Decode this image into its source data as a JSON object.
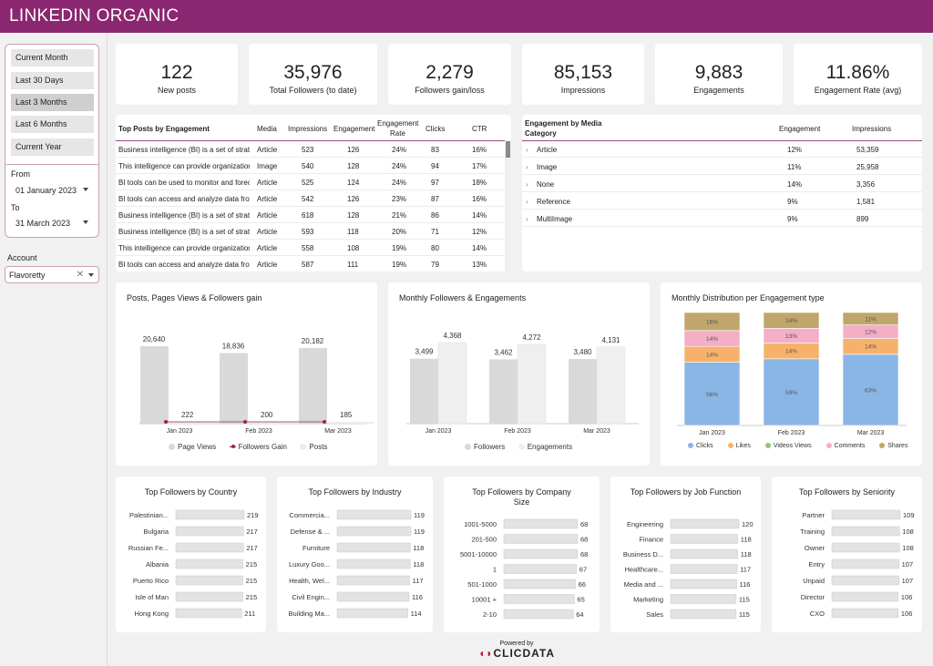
{
  "header": {
    "title": "LINKEDIN ORGANIC"
  },
  "sidebar": {
    "periods": [
      {
        "label": "Current Month",
        "active": false
      },
      {
        "label": "Last 30 Days",
        "active": false
      },
      {
        "label": "Last 3 Months",
        "active": true
      },
      {
        "label": "Last 6 Months",
        "active": false
      },
      {
        "label": "Current Year",
        "active": false
      }
    ],
    "from_label": "From",
    "from_value": "01 January 2023",
    "to_label": "To",
    "to_value": "31 March 2023",
    "account_label": "Account",
    "account_value": "Flavoretty",
    "account_clear": "✕"
  },
  "kpis": [
    {
      "value": "122",
      "caption": "New posts"
    },
    {
      "value": "35,976",
      "caption": "Total Followers (to date)"
    },
    {
      "value": "2,279",
      "caption": "Followers gain/loss"
    },
    {
      "value": "85,153",
      "caption": "Impressions"
    },
    {
      "value": "9,883",
      "caption": "Engagements"
    },
    {
      "value": "11.86%",
      "caption": "Engagement Rate (avg)"
    }
  ],
  "top_posts": {
    "headers": {
      "title": "Top Posts by Engagement",
      "media": "Media",
      "impressions": "Impressions",
      "engagement": "Engagement",
      "rate_1": "Engagement",
      "rate_2": "Rate",
      "clicks": "Clicks",
      "ctr": "CTR"
    },
    "rows": [
      {
        "post": "Business intelligence (BI) is a set of strategies",
        "media": "Article",
        "impressions": "523",
        "engagement": "126",
        "rate": "24%",
        "clicks": "83",
        "ctr": "16%"
      },
      {
        "post": "This intelligence can provide organizations",
        "media": "Image",
        "impressions": "540",
        "engagement": "128",
        "rate": "24%",
        "clicks": "94",
        "ctr": "17%"
      },
      {
        "post": "BI tools can be used to monitor and forecast",
        "media": "Article",
        "impressions": "525",
        "engagement": "124",
        "rate": "24%",
        "clicks": "97",
        "ctr": "18%"
      },
      {
        "post": "BI tools can access and analyze data from",
        "media": "Article",
        "impressions": "542",
        "engagement": "126",
        "rate": "23%",
        "clicks": "87",
        "ctr": "16%"
      },
      {
        "post": "Business intelligence (BI) is a set of strategies",
        "media": "Article",
        "impressions": "618",
        "engagement": "128",
        "rate": "21%",
        "clicks": "86",
        "ctr": "14%"
      },
      {
        "post": "Business intelligence (BI) is a set of strategies",
        "media": "Article",
        "impressions": "593",
        "engagement": "118",
        "rate": "20%",
        "clicks": "71",
        "ctr": "12%"
      },
      {
        "post": "This intelligence can provide organizations",
        "media": "Article",
        "impressions": "558",
        "engagement": "108",
        "rate": "19%",
        "clicks": "80",
        "ctr": "14%"
      },
      {
        "post": "BI tools can access and analyze data from",
        "media": "Article",
        "impressions": "587",
        "engagement": "111",
        "rate": "19%",
        "clicks": "79",
        "ctr": "13%"
      }
    ]
  },
  "media_category": {
    "headers": {
      "title_1": "Engagement by Media",
      "title_2": "Category",
      "engagement": "Engagement",
      "impressions": "Impressions"
    },
    "rows": [
      {
        "name": "Article",
        "engagement": "12%",
        "impressions": "53,359"
      },
      {
        "name": "Image",
        "engagement": "11%",
        "impressions": "25,958"
      },
      {
        "name": "None",
        "engagement": "14%",
        "impressions": "3,356"
      },
      {
        "name": "Reference",
        "engagement": "9%",
        "impressions": "1,581"
      },
      {
        "name": "MultiImage",
        "engagement": "9%",
        "impressions": "899"
      }
    ]
  },
  "chart_data": [
    {
      "type": "bar",
      "title": "Posts, Pages Views & Followers gain",
      "categories": [
        "Jan 2023",
        "Feb 2023",
        "Mar 2023"
      ],
      "series": [
        {
          "name": "Page Views",
          "values": [
            20640,
            18836,
            20182
          ],
          "color": "#d9d9d9"
        },
        {
          "name": "Followers Gain",
          "values": [
            222,
            200,
            185
          ],
          "color": "#a01f4f"
        },
        {
          "name": "Posts",
          "values": [
            0,
            0,
            0
          ],
          "color": "#ececec"
        }
      ],
      "data_labels": [
        [
          "20,640",
          "222"
        ],
        [
          "18,836",
          "200"
        ],
        [
          "20,182",
          "185"
        ]
      ]
    },
    {
      "type": "bar",
      "title": "Monthly Followers & Engagements",
      "categories": [
        "Jan 2023",
        "Feb 2023",
        "Mar 2023"
      ],
      "series": [
        {
          "name": "Followers",
          "values": [
            3499,
            3462,
            3480
          ],
          "labels": [
            "3,499",
            "3,462",
            "3,480"
          ],
          "color": "#d9d9d9"
        },
        {
          "name": "Engagements",
          "values": [
            4368,
            4272,
            4131
          ],
          "labels": [
            "4,368",
            "4,272",
            "4,131"
          ],
          "color": "#efefef"
        }
      ]
    },
    {
      "type": "bar",
      "title": "Monthly Distribution per Engagement type",
      "categories": [
        "Jan 2023",
        "Feb 2023",
        "Mar 2023"
      ],
      "series": [
        {
          "name": "Clicks",
          "values": [
            56,
            59,
            63
          ],
          "color": "#8ab6e6"
        },
        {
          "name": "Likes",
          "values": [
            14,
            14,
            14
          ],
          "color": "#f6b26b"
        },
        {
          "name": "Videos Views",
          "values": [
            0,
            0,
            0
          ],
          "color": "#93c47d"
        },
        {
          "name": "Comments",
          "values": [
            14,
            13,
            12
          ],
          "color": "#f4aec6"
        },
        {
          "name": "Shares",
          "values": [
            16,
            14,
            11
          ],
          "color": "#bfa66a"
        }
      ]
    },
    {
      "type": "bar",
      "title": "Top Followers by Country",
      "categories": [
        "Palestinian...",
        "Bulgaria",
        "Russian Fe...",
        "Albania",
        "Puerto Rico",
        "Isle of Man",
        "Hong Kong"
      ],
      "values": [
        219,
        217,
        217,
        215,
        215,
        215,
        211
      ]
    },
    {
      "type": "bar",
      "title": "Top Followers by Industry",
      "categories": [
        "Commercia...",
        "Defense & ...",
        "Furniture",
        "Luxury Goo...",
        "Health, Wel...",
        "Civil Engin...",
        "Building Ma..."
      ],
      "values": [
        119,
        119,
        118,
        118,
        117,
        116,
        114
      ]
    },
    {
      "type": "bar",
      "title": "Top Followers by Company Size",
      "categories": [
        "1001-5000",
        "201-500",
        "5001-10000",
        "1",
        "501-1000",
        "10001 +",
        "2-10"
      ],
      "values": [
        68,
        68,
        68,
        67,
        66,
        65,
        64
      ]
    },
    {
      "type": "bar",
      "title": "Top Followers by Job Function",
      "categories": [
        "Engineering",
        "Finance",
        "Business D...",
        "Healthcare...",
        "Media and ...",
        "Marketing",
        "Sales"
      ],
      "values": [
        120,
        118,
        118,
        117,
        116,
        115,
        115
      ]
    },
    {
      "type": "bar",
      "title": "Top Followers by Seniority",
      "categories": [
        "Partner",
        "Training",
        "Owner",
        "Entry",
        "Unpaid",
        "Director",
        "CXO"
      ],
      "values": [
        109,
        108,
        108,
        107,
        107,
        106,
        106
      ]
    }
  ],
  "footer": {
    "powered": "Powered by",
    "brand": "CLICDATA"
  }
}
